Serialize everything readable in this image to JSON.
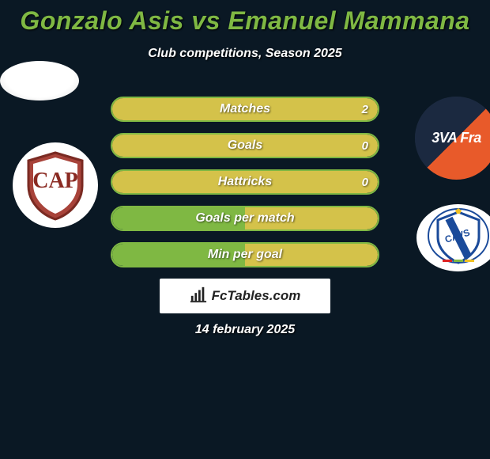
{
  "title": {
    "text": "Gonzalo Asis vs Emanuel Mammana",
    "color": "#7fb843",
    "fontsize": 32
  },
  "subtitle": {
    "text": "Club competitions, Season 2025",
    "color": "#ffffff",
    "fontsize": 16
  },
  "date": {
    "text": "14 february 2025",
    "color": "#ffffff",
    "fontsize": 16
  },
  "branding": {
    "label": "FcTables.com",
    "box_bg": "#ffffff",
    "text_color": "#222222"
  },
  "colors": {
    "background": "#0a1824",
    "player1_accent": "#7fb843",
    "player2_accent": "#d4c24a",
    "bar_bg": "#0e2a3b"
  },
  "club_logos": {
    "player1": {
      "name": "Platense",
      "primary": "#8a2a22",
      "secondary": "#ffffff"
    },
    "player2": {
      "name": "Velez",
      "primary": "#1a4a9a",
      "secondary": "#ffffff",
      "stripes": [
        "#d22",
        "#7fb843",
        "#f0c020"
      ]
    }
  },
  "stats": [
    {
      "label": "Matches",
      "left_val": "",
      "right_val": "2",
      "left_fill_pct": 0,
      "right_fill_pct": 100
    },
    {
      "label": "Goals",
      "left_val": "",
      "right_val": "0",
      "left_fill_pct": 0,
      "right_fill_pct": 100
    },
    {
      "label": "Hattricks",
      "left_val": "",
      "right_val": "0",
      "left_fill_pct": 0,
      "right_fill_pct": 100
    },
    {
      "label": "Goals per match",
      "left_val": "",
      "right_val": "",
      "left_fill_pct": 50,
      "right_fill_pct": 50
    },
    {
      "label": "Min per goal",
      "left_val": "",
      "right_val": "",
      "left_fill_pct": 50,
      "right_fill_pct": 50
    }
  ],
  "bar_style": {
    "height": 32,
    "gap": 14,
    "border_radius": 18,
    "label_fontsize": 16,
    "value_fontsize": 15
  }
}
